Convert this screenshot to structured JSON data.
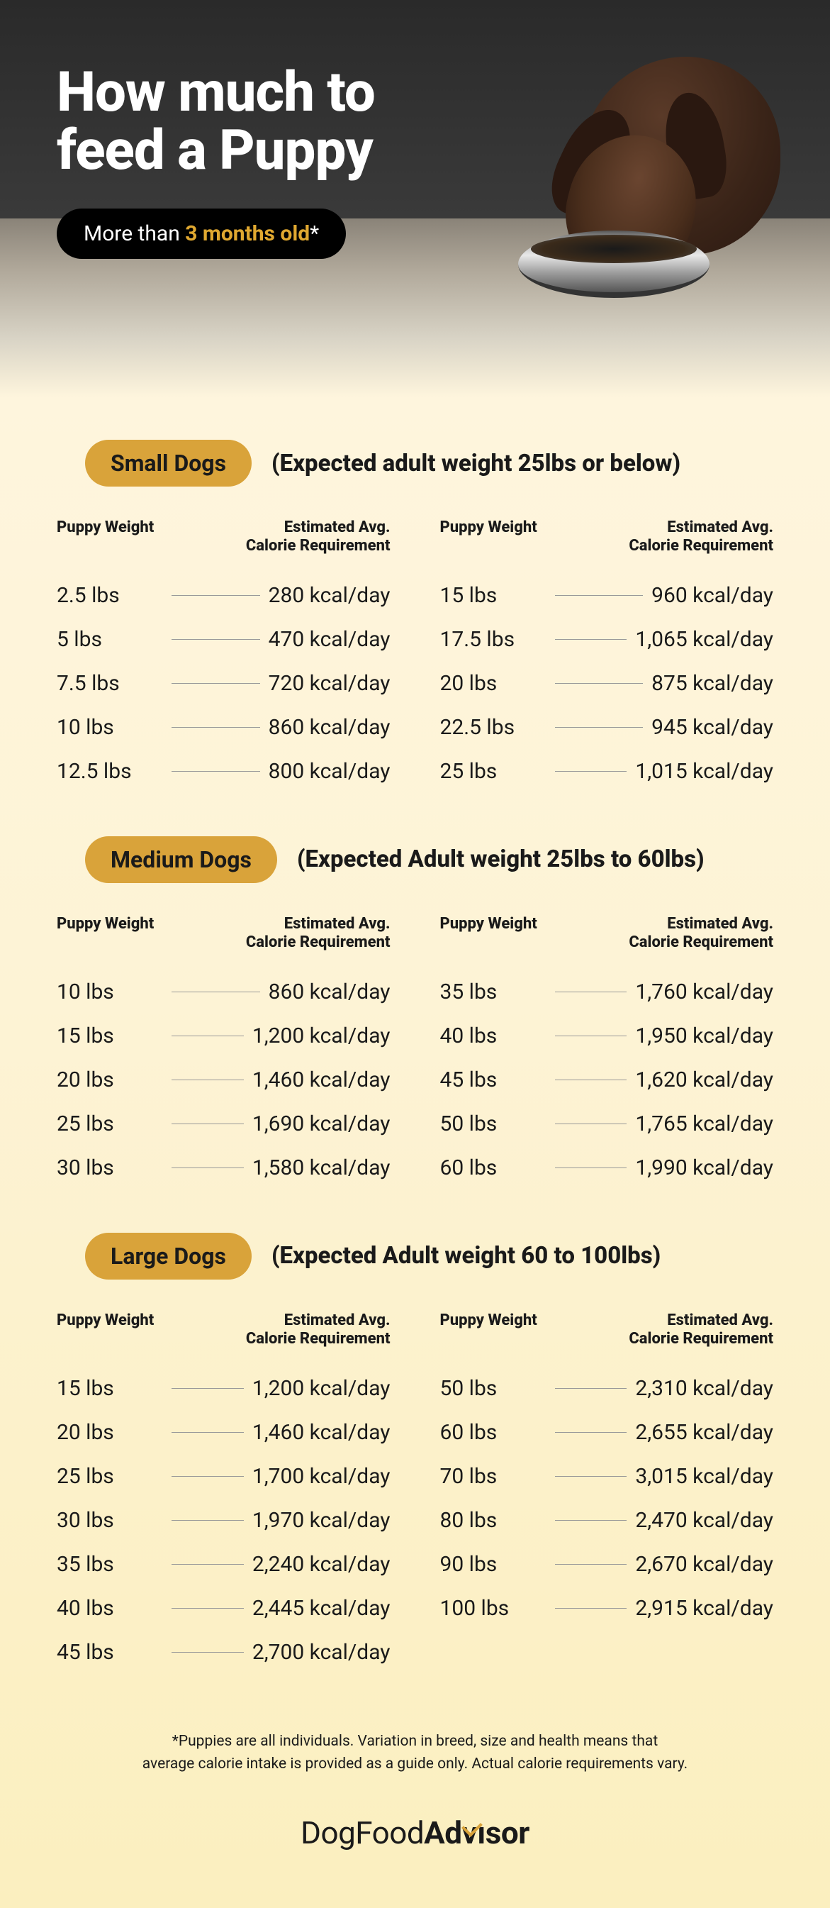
{
  "hero": {
    "title_line1": "How much to",
    "title_line2": "feed a Puppy",
    "pill_prefix": "More than ",
    "pill_accent": "3 months old",
    "pill_suffix": "*"
  },
  "colors": {
    "badge_bg": "#d9a33a",
    "accent": "#e0a830",
    "text": "#1a1a1a",
    "bg_top": "#fef5dd",
    "bg_bottom": "#fbefbf"
  },
  "headers": {
    "weight": "Puppy Weight",
    "calorie_l1": "Estimated Avg.",
    "calorie_l2": "Calorie Requirement"
  },
  "sections": [
    {
      "badge": "Small Dogs",
      "sub": "(Expected adult weight 25lbs or below)",
      "left": [
        {
          "w": "2.5 lbs",
          "c": "280 kcal/day"
        },
        {
          "w": "5 lbs",
          "c": "470 kcal/day"
        },
        {
          "w": "7.5 lbs",
          "c": "720 kcal/day"
        },
        {
          "w": "10 lbs",
          "c": "860 kcal/day"
        },
        {
          "w": "12.5 lbs",
          "c": "800 kcal/day"
        }
      ],
      "right": [
        {
          "w": "15 lbs",
          "c": "960 kcal/day"
        },
        {
          "w": "17.5 lbs",
          "c": "1,065 kcal/day"
        },
        {
          "w": "20 lbs",
          "c": "875 kcal/day"
        },
        {
          "w": "22.5 lbs",
          "c": "945 kcal/day"
        },
        {
          "w": "25 lbs",
          "c": "1,015 kcal/day"
        }
      ]
    },
    {
      "badge": "Medium Dogs",
      "sub": "(Expected Adult weight 25lbs to 60lbs)",
      "left": [
        {
          "w": "10 lbs",
          "c": "860 kcal/day"
        },
        {
          "w": "15 lbs",
          "c": "1,200 kcal/day"
        },
        {
          "w": "20 lbs",
          "c": "1,460 kcal/day"
        },
        {
          "w": "25 lbs",
          "c": "1,690 kcal/day"
        },
        {
          "w": "30 lbs",
          "c": "1,580 kcal/day"
        }
      ],
      "right": [
        {
          "w": "35 lbs",
          "c": "1,760 kcal/day"
        },
        {
          "w": "40 lbs",
          "c": "1,950 kcal/day"
        },
        {
          "w": "45 lbs",
          "c": "1,620 kcal/day"
        },
        {
          "w": "50 lbs",
          "c": "1,765 kcal/day"
        },
        {
          "w": "60 lbs",
          "c": "1,990 kcal/day"
        }
      ]
    },
    {
      "badge": "Large Dogs",
      "sub": "(Expected Adult weight 60 to 100lbs)",
      "left": [
        {
          "w": "15 lbs",
          "c": "1,200 kcal/day"
        },
        {
          "w": "20 lbs",
          "c": "1,460 kcal/day"
        },
        {
          "w": "25 lbs",
          "c": "1,700 kcal/day"
        },
        {
          "w": "30 lbs",
          "c": "1,970 kcal/day"
        },
        {
          "w": "35 lbs",
          "c": "2,240 kcal/day"
        },
        {
          "w": "40 lbs",
          "c": "2,445 kcal/day"
        },
        {
          "w": "45 lbs",
          "c": "2,700 kcal/day"
        }
      ],
      "right": [
        {
          "w": "50 lbs",
          "c": "2,310 kcal/day"
        },
        {
          "w": "60 lbs",
          "c": "2,655 kcal/day"
        },
        {
          "w": "70 lbs",
          "c": "3,015 kcal/day"
        },
        {
          "w": "80 lbs",
          "c": "2,470 kcal/day"
        },
        {
          "w": "90 lbs",
          "c": "2,670 kcal/day"
        },
        {
          "w": "100 lbs",
          "c": "2,915 kcal/day"
        }
      ]
    }
  ],
  "disclaimer_l1": "*Puppies are all individuals. Variation in breed, size and health means that",
  "disclaimer_l2": "average calorie intake is provided as a guide only. Actual calorie requirements vary.",
  "logo": {
    "part1": "DogFood",
    "part2": "Ad",
    "part3": "ısor"
  }
}
